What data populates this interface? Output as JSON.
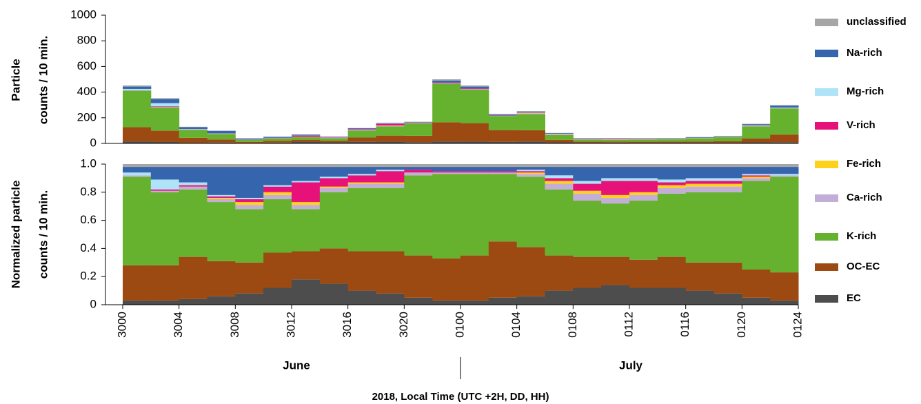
{
  "chart_data": [
    {
      "type": "bar",
      "stacked": true,
      "ylabel": [
        "Particle",
        "counts / 10 min."
      ],
      "x": [
        0,
        2,
        4,
        6,
        8,
        10,
        12,
        14,
        16,
        18,
        20,
        22,
        24,
        26,
        28,
        30,
        32,
        34,
        36,
        38,
        40,
        42,
        44,
        46
      ],
      "xlim": [
        0,
        48
      ],
      "ylim": [
        0,
        1000
      ],
      "yticks": [
        0,
        200,
        400,
        600,
        800,
        1000
      ],
      "series": [
        {
          "name": "EC",
          "color": "#4d4d4d",
          "values": [
            14,
            11,
            5,
            6,
            3,
            6,
            13,
            8,
            12,
            13,
            9,
            15,
            14,
            12,
            15,
            8,
            5,
            6,
            5,
            5,
            5,
            5,
            8,
            9
          ]
        },
        {
          "name": "OC-EC",
          "color": "#9c4a12",
          "values": [
            113,
            88,
            39,
            25,
            9,
            13,
            14,
            13,
            34,
            48,
            51,
            150,
            144,
            92,
            88,
            20,
            9,
            8,
            8,
            9,
            10,
            13,
            30,
            60
          ]
        },
        {
          "name": "K-rich",
          "color": "#66b22e",
          "values": [
            284,
            182,
            62,
            42,
            15,
            19,
            21,
            20,
            54,
            72,
            97,
            300,
            261,
            110,
            125,
            38,
            16,
            15,
            17,
            18,
            25,
            30,
            95,
            204
          ]
        },
        {
          "name": "Ca-rich",
          "color": "#c2aed6",
          "values": [
            5,
            4,
            3,
            2,
            1,
            2,
            2,
            2,
            4,
            5,
            3,
            5,
            5,
            2,
            5,
            3,
            2,
            2,
            2,
            2,
            2,
            2,
            3,
            3
          ]
        },
        {
          "name": "Fe-rich",
          "color": "#ffd11a",
          "values": [
            0,
            0,
            0,
            1,
            1,
            1,
            1,
            1,
            1,
            2,
            0,
            0,
            0,
            0,
            3,
            2,
            1,
            1,
            1,
            1,
            1,
            1,
            2,
            0
          ]
        },
        {
          "name": "V-rich",
          "color": "#e6127a",
          "values": [
            0,
            4,
            1,
            1,
            1,
            2,
            10,
            3,
            6,
            13,
            3,
            5,
            5,
            2,
            3,
            2,
            2,
            4,
            3,
            1,
            1,
            1,
            2,
            0
          ]
        },
        {
          "name": "Mg-rich",
          "color": "#aee3f8",
          "values": [
            9,
            25,
            3,
            1,
            0,
            1,
            1,
            1,
            1,
            2,
            0,
            0,
            0,
            0,
            3,
            2,
            1,
            1,
            1,
            1,
            1,
            1,
            2,
            3
          ]
        },
        {
          "name": "Na-rich",
          "color": "#3565ad",
          "values": [
            18,
            32,
            14,
            20,
            9,
            7,
            7,
            4,
            6,
            3,
            3,
            15,
            14,
            7,
            5,
            5,
            4,
            3,
            3,
            4,
            4,
            5,
            8,
            15
          ]
        },
        {
          "name": "unclassified",
          "color": "#a6a6a6",
          "values": [
            9,
            7,
            3,
            2,
            1,
            1,
            1,
            1,
            2,
            3,
            3,
            10,
            9,
            5,
            5,
            2,
            1,
            1,
            1,
            1,
            1,
            1,
            3,
            6
          ]
        }
      ]
    },
    {
      "type": "bar",
      "stacked": true,
      "ylabel": [
        "Normalized particle",
        "counts / 10 min."
      ],
      "xlabel": "2018, Local Time (UTC +2H, DD, HH)",
      "month_labels": [
        "June",
        "July"
      ],
      "x": [
        0,
        2,
        4,
        6,
        8,
        10,
        12,
        14,
        16,
        18,
        20,
        22,
        24,
        26,
        28,
        30,
        32,
        34,
        36,
        38,
        40,
        42,
        44,
        46
      ],
      "xlim": [
        0,
        48
      ],
      "xticks": [
        {
          "value": 0,
          "label": "3000"
        },
        {
          "value": 4,
          "label": "3004"
        },
        {
          "value": 8,
          "label": "3008"
        },
        {
          "value": 12,
          "label": "3012"
        },
        {
          "value": 16,
          "label": "3016"
        },
        {
          "value": 20,
          "label": "3020"
        },
        {
          "value": 24,
          "label": "0100"
        },
        {
          "value": 28,
          "label": "0104"
        },
        {
          "value": 32,
          "label": "0108"
        },
        {
          "value": 36,
          "label": "0112"
        },
        {
          "value": 40,
          "label": "0116"
        },
        {
          "value": 44,
          "label": "0120"
        },
        {
          "value": 48,
          "label": "0124"
        }
      ],
      "ylim": [
        0,
        1
      ],
      "yticks": [
        0,
        0.2,
        0.4,
        0.6,
        0.8,
        {
          "value": 1,
          "label": "1.0"
        }
      ],
      "series": [
        {
          "values": [
            0.03,
            0.03,
            0.04,
            0.06,
            0.08,
            0.12,
            0.18,
            0.15,
            0.1,
            0.08,
            0.05,
            0.03,
            0.03,
            0.05,
            0.06,
            0.1,
            0.12,
            0.14,
            0.12,
            0.12,
            0.1,
            0.08,
            0.05,
            0.03
          ]
        },
        {
          "values": [
            0.25,
            0.25,
            0.3,
            0.25,
            0.22,
            0.25,
            0.2,
            0.25,
            0.28,
            0.3,
            0.3,
            0.3,
            0.32,
            0.4,
            0.35,
            0.25,
            0.22,
            0.2,
            0.2,
            0.22,
            0.2,
            0.22,
            0.2,
            0.2
          ]
        },
        {
          "values": [
            0.63,
            0.52,
            0.48,
            0.42,
            0.38,
            0.38,
            0.3,
            0.4,
            0.45,
            0.45,
            0.57,
            0.6,
            0.58,
            0.48,
            0.5,
            0.47,
            0.4,
            0.38,
            0.42,
            0.45,
            0.5,
            0.5,
            0.63,
            0.68
          ]
        },
        {
          "values": [
            0.01,
            0.01,
            0.02,
            0.02,
            0.03,
            0.03,
            0.03,
            0.03,
            0.03,
            0.03,
            0.02,
            0.01,
            0.01,
            0.01,
            0.02,
            0.04,
            0.05,
            0.04,
            0.04,
            0.04,
            0.04,
            0.04,
            0.02,
            0.01
          ]
        },
        {
          "values": [
            0,
            0,
            0,
            0.01,
            0.02,
            0.02,
            0.02,
            0.01,
            0.01,
            0.01,
            0,
            0,
            0,
            0,
            0.01,
            0.02,
            0.02,
            0.02,
            0.02,
            0.02,
            0.02,
            0.02,
            0.01,
            0
          ]
        },
        {
          "values": [
            0,
            0.01,
            0.01,
            0.01,
            0.02,
            0.04,
            0.14,
            0.06,
            0.05,
            0.08,
            0.02,
            0.01,
            0.01,
            0.01,
            0.01,
            0.02,
            0.05,
            0.1,
            0.08,
            0.02,
            0.02,
            0.02,
            0.01,
            0
          ]
        },
        {
          "values": [
            0.02,
            0.07,
            0.02,
            0.01,
            0.01,
            0.01,
            0.01,
            0.01,
            0.01,
            0.01,
            0,
            0,
            0,
            0,
            0.01,
            0.02,
            0.02,
            0.02,
            0.02,
            0.02,
            0.02,
            0.02,
            0.01,
            0.01
          ]
        },
        {
          "values": [
            0.04,
            0.09,
            0.11,
            0.2,
            0.22,
            0.13,
            0.1,
            0.07,
            0.05,
            0.02,
            0.02,
            0.03,
            0.03,
            0.03,
            0.02,
            0.06,
            0.1,
            0.08,
            0.08,
            0.09,
            0.08,
            0.08,
            0.05,
            0.05
          ]
        },
        {
          "values": [
            0.02,
            0.02,
            0.02,
            0.02,
            0.02,
            0.02,
            0.02,
            0.02,
            0.02,
            0.02,
            0.02,
            0.02,
            0.02,
            0.02,
            0.02,
            0.02,
            0.02,
            0.02,
            0.02,
            0.02,
            0.02,
            0.02,
            0.02,
            0.02
          ]
        }
      ]
    }
  ]
}
